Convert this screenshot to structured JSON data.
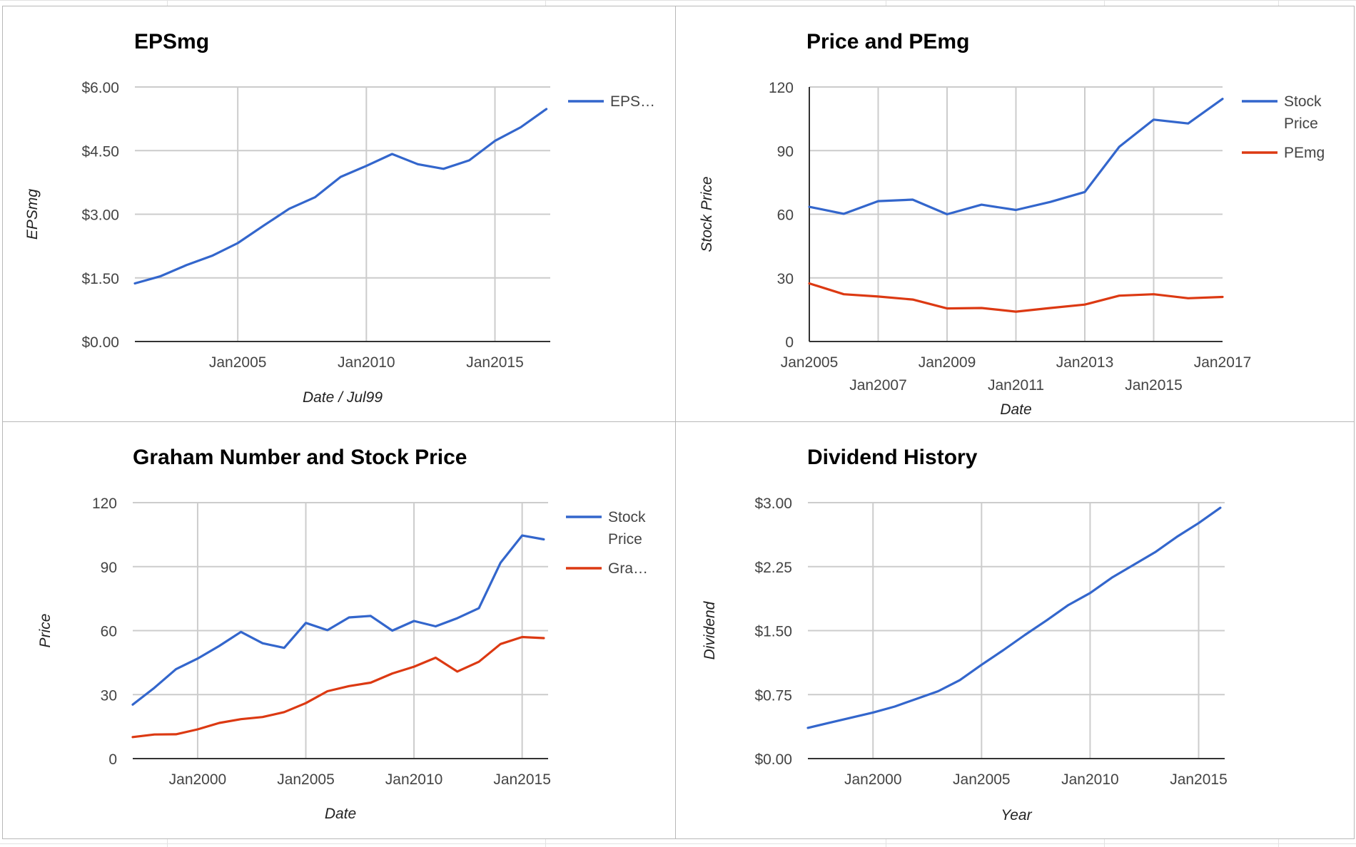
{
  "colors": {
    "series_blue": "#3366cc",
    "series_red": "#dc3912",
    "grid": "#cccccc",
    "axis": "#333333",
    "text": "#444444"
  },
  "chart_data": [
    {
      "type": "line",
      "title": "EPSmg",
      "xlabel": "Date / Jul99",
      "ylabel": "EPSmg",
      "x_ticks": [
        "Jan2005",
        "Jan2010",
        "Jan2015"
      ],
      "y_ticks": [
        "$0.00",
        "$1.50",
        "$3.00",
        "$4.50",
        "$6.00"
      ],
      "ylim": [
        0,
        6
      ],
      "legend_position": "right",
      "series": [
        {
          "name": "EPS…",
          "color": "#3366cc",
          "x": [
            "2001-01",
            "2002-01",
            "2003-01",
            "2004-01",
            "2005-01",
            "2006-01",
            "2007-01",
            "2008-01",
            "2009-01",
            "2010-01",
            "2011-01",
            "2012-01",
            "2013-01",
            "2014-01",
            "2015-01",
            "2016-01",
            "2017-01"
          ],
          "values": [
            1.37,
            1.54,
            1.8,
            2.02,
            2.32,
            2.73,
            3.13,
            3.4,
            3.88,
            4.14,
            4.42,
            4.18,
            4.07,
            4.27,
            4.73,
            5.05,
            5.48
          ]
        }
      ]
    },
    {
      "type": "line",
      "title": "Price and PEmg",
      "xlabel": "Date",
      "ylabel": "Stock Price",
      "x_ticks": [
        "Jan2005",
        "Jan2007",
        "Jan2009",
        "Jan2011",
        "Jan2013",
        "Jan2015",
        "Jan2017"
      ],
      "y_ticks": [
        "0",
        "30",
        "60",
        "90",
        "120"
      ],
      "ylim": [
        0,
        120
      ],
      "legend_position": "right",
      "series": [
        {
          "name": "Stock Price",
          "color": "#3366cc",
          "x": [
            "2005-01",
            "2006-01",
            "2007-01",
            "2008-01",
            "2009-01",
            "2010-01",
            "2011-01",
            "2012-01",
            "2013-01",
            "2014-01",
            "2015-01",
            "2016-01",
            "2017-01"
          ],
          "values": [
            63.5,
            60.2,
            66.2,
            66.9,
            60.0,
            64.5,
            62.0,
            65.8,
            70.5,
            91.8,
            104.6,
            102.8,
            114.4
          ]
        },
        {
          "name": "PEmg",
          "color": "#dc3912",
          "x": [
            "2005-01",
            "2006-01",
            "2007-01",
            "2008-01",
            "2009-01",
            "2010-01",
            "2011-01",
            "2012-01",
            "2013-01",
            "2014-01",
            "2015-01",
            "2016-01",
            "2017-01"
          ],
          "values": [
            27.4,
            22.3,
            21.2,
            19.8,
            15.6,
            15.8,
            14.1,
            15.8,
            17.4,
            21.6,
            22.3,
            20.4,
            21.0
          ]
        }
      ]
    },
    {
      "type": "line",
      "title": "Graham Number and Stock Price",
      "xlabel": "Date",
      "ylabel": "Price",
      "x_ticks": [
        "Jan2000",
        "Jan2005",
        "Jan2010",
        "Jan2015"
      ],
      "y_ticks": [
        "0",
        "30",
        "60",
        "90",
        "120"
      ],
      "ylim": [
        0,
        120
      ],
      "legend_position": "right",
      "series": [
        {
          "name": "Stock Price",
          "color": "#3366cc",
          "x": [
            "1997-01",
            "1998-01",
            "1999-01",
            "2000-01",
            "2001-01",
            "2002-01",
            "2003-01",
            "2004-01",
            "2005-01",
            "2006-01",
            "2007-01",
            "2008-01",
            "2009-01",
            "2010-01",
            "2011-01",
            "2012-01",
            "2013-01",
            "2014-01",
            "2015-01",
            "2016-01"
          ],
          "values": [
            25.3,
            33.2,
            41.9,
            46.9,
            52.8,
            59.4,
            54.1,
            51.9,
            63.6,
            60.2,
            66.2,
            66.9,
            60.0,
            64.5,
            62.0,
            65.8,
            70.5,
            91.8,
            104.6,
            102.8
          ]
        },
        {
          "name": "Gra…",
          "color": "#dc3912",
          "x": [
            "1997-01",
            "1998-01",
            "1999-01",
            "2000-01",
            "2001-01",
            "2002-01",
            "2003-01",
            "2004-01",
            "2005-01",
            "2006-01",
            "2007-01",
            "2008-01",
            "2009-01",
            "2010-01",
            "2011-01",
            "2012-01",
            "2013-01",
            "2014-01",
            "2015-01",
            "2016-01"
          ],
          "values": [
            10.1,
            11.3,
            11.4,
            13.7,
            16.7,
            18.5,
            19.5,
            21.8,
            26.0,
            31.6,
            34.0,
            35.6,
            39.9,
            43.1,
            47.3,
            40.8,
            45.4,
            53.7,
            57.0,
            56.5
          ]
        }
      ]
    },
    {
      "type": "line",
      "title": "Dividend History",
      "xlabel": "Year",
      "ylabel": "Dividend",
      "x_ticks": [
        "Jan2000",
        "Jan2005",
        "Jan2010",
        "Jan2015"
      ],
      "y_ticks": [
        "$0.00",
        "$0.75",
        "$1.50",
        "$2.25",
        "$3.00"
      ],
      "ylim": [
        0,
        3
      ],
      "legend_position": "none",
      "series": [
        {
          "color": "#3366cc",
          "x": [
            "1997-01",
            "1998-01",
            "1999-01",
            "2000-01",
            "2001-01",
            "2002-01",
            "2003-01",
            "2004-01",
            "2005-01",
            "2006-01",
            "2007-01",
            "2008-01",
            "2009-01",
            "2010-01",
            "2011-01",
            "2012-01",
            "2013-01",
            "2014-01",
            "2015-01",
            "2016-01"
          ],
          "values": [
            0.36,
            0.42,
            0.48,
            0.54,
            0.61,
            0.7,
            0.79,
            0.92,
            1.1,
            1.27,
            1.45,
            1.62,
            1.8,
            1.94,
            2.12,
            2.27,
            2.42,
            2.6,
            2.76,
            2.94
          ]
        }
      ]
    }
  ]
}
